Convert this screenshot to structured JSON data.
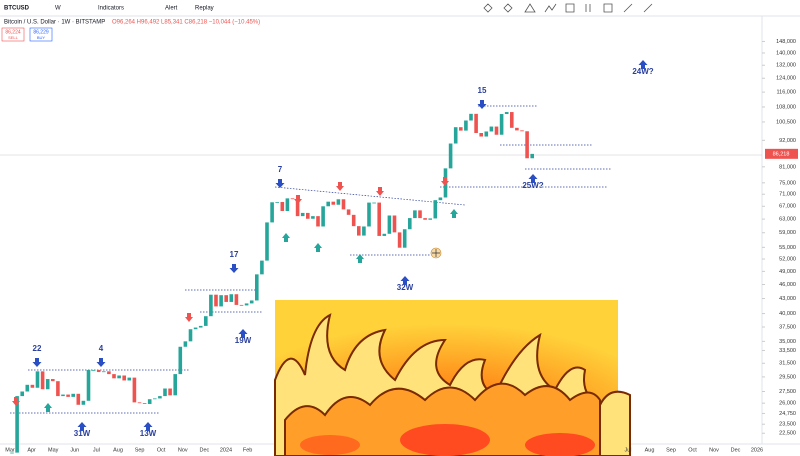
{
  "toolbar": {
    "symbol": "BTCUSD",
    "interval": "W",
    "buttons": [
      "Indicators",
      "Alert",
      "Replay"
    ]
  },
  "legend": {
    "title": "Bitcoin / U.S. Dollar · 1W · BITSTAMP",
    "ohlc": "O96,264 H96,492 L85,341 C86,218 −10,044 (−10.45%)",
    "sell_price": "86,224",
    "sell_label": "SELL",
    "buy_price": "86,229",
    "buy_label": "BUY"
  },
  "price_axis": {
    "scale": "log",
    "ticks": [
      {
        "value": 148000,
        "label": "148,000"
      },
      {
        "value": 140000,
        "label": "140,000"
      },
      {
        "value": 132000,
        "label": "132,000"
      },
      {
        "value": 124000,
        "label": "124,000"
      },
      {
        "value": 116000,
        "label": "116,000"
      },
      {
        "value": 108000,
        "label": "108,000"
      },
      {
        "value": 100500,
        "label": "100,500"
      },
      {
        "value": 92000,
        "label": "92,000"
      },
      {
        "value": 81000,
        "label": "81,000"
      },
      {
        "value": 75000,
        "label": "75,000"
      },
      {
        "value": 71000,
        "label": "71,000"
      },
      {
        "value": 67000,
        "label": "67,000"
      },
      {
        "value": 63000,
        "label": "63,000"
      },
      {
        "value": 59000,
        "label": "59,000"
      },
      {
        "value": 55000,
        "label": "55,000"
      },
      {
        "value": 52000,
        "label": "52,000"
      },
      {
        "value": 49000,
        "label": "49,000"
      },
      {
        "value": 46000,
        "label": "46,000"
      },
      {
        "value": 43000,
        "label": "43,000"
      },
      {
        "value": 40000,
        "label": "40,000"
      },
      {
        "value": 37500,
        "label": "37,500"
      },
      {
        "value": 35000,
        "label": "35,000"
      },
      {
        "value": 33500,
        "label": "33,500"
      },
      {
        "value": 31500,
        "label": "31,500"
      },
      {
        "value": 29500,
        "label": "29,500"
      },
      {
        "value": 27500,
        "label": "27,500"
      },
      {
        "value": 26000,
        "label": "26,000"
      },
      {
        "value": 24750,
        "label": "24,750"
      },
      {
        "value": 23500,
        "label": "23,500"
      },
      {
        "value": 22500,
        "label": "22,500"
      }
    ],
    "last_price": {
      "value": 86218,
      "label": "86,218"
    }
  },
  "time_axis": {
    "left": [
      "Mar",
      "Apr",
      "May",
      "Jun",
      "Jul",
      "Aug",
      "Sep",
      "Oct",
      "Nov",
      "Dec",
      "2024",
      "Feb"
    ],
    "right": [
      "Jul",
      "Aug",
      "Sep",
      "Oct",
      "Nov",
      "Dec",
      "2026"
    ]
  },
  "candles": {
    "up_color": "#26a69a",
    "down_color": "#ef5350",
    "closes": [
      20500,
      26900,
      27500,
      28400,
      28000,
      30300,
      27800,
      29200,
      28900,
      26900,
      27100,
      26800,
      27200,
      25800,
      26300,
      30500,
      30500,
      30200,
      30300,
      29900,
      29300,
      29700,
      29000,
      29400,
      26100,
      26000,
      25900,
      26500,
      26600,
      26900,
      27900,
      27000,
      29900,
      34100,
      35000,
      37100,
      37400,
      37700,
      39500,
      43800,
      41400,
      43700,
      42300,
      43900,
      41700,
      41600,
      42000,
      42600,
      48300,
      51600,
      62000,
      68300,
      68400,
      65500,
      69600,
      69400,
      63900,
      64900,
      63100,
      63900,
      60800,
      67000,
      68500,
      67500,
      69300,
      66000,
      64300,
      60900,
      58200,
      60800,
      68200,
      68200,
      58100,
      58700,
      64100,
      59100,
      54900,
      60000,
      63300,
      65700,
      63300,
      62800,
      63200,
      69000,
      69900,
      80400,
      90600,
      98000,
      96400,
      101200,
      104500,
      95300,
      93700,
      96000,
      98300,
      94500,
      104400,
      105400,
      97700,
      96500,
      96100,
      84400,
      86200
    ]
  },
  "annotations": [
    "22",
    "4",
    "31W",
    "13W",
    "17",
    "19W",
    "7",
    "32W",
    "15",
    "25W?",
    "24W?"
  ]
}
